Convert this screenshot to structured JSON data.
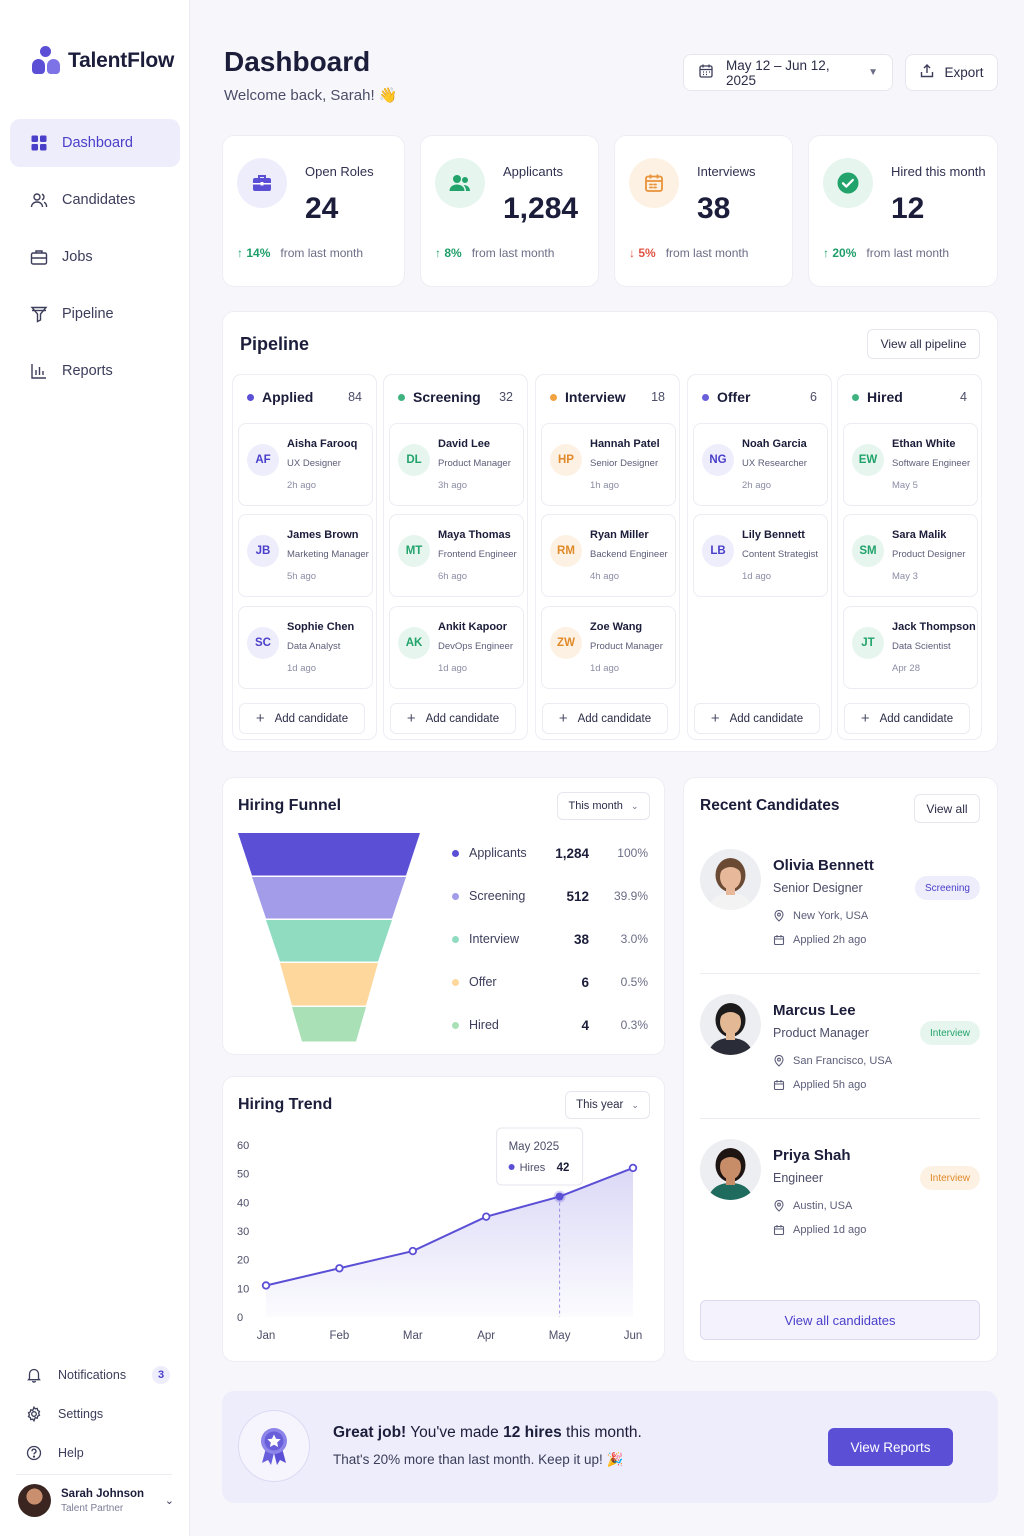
{
  "app": {
    "name": "TalentFlow"
  },
  "sidebar": {
    "nav": [
      {
        "label": "Dashboard",
        "icon": "grid-icon",
        "active": true
      },
      {
        "label": "Candidates",
        "icon": "users-icon"
      },
      {
        "label": "Jobs",
        "icon": "briefcase-icon"
      },
      {
        "label": "Pipeline",
        "icon": "filter-icon"
      },
      {
        "label": "Reports",
        "icon": "bar-chart-icon"
      }
    ],
    "bottom": [
      {
        "label": "Notifications",
        "icon": "bell-icon",
        "badge": "3"
      },
      {
        "label": "Settings",
        "icon": "gear-icon"
      },
      {
        "label": "Help",
        "icon": "help-icon"
      }
    ],
    "user": {
      "name": "Sarah Johnson",
      "role": "Talent Partner"
    }
  },
  "header": {
    "title": "Dashboard",
    "welcome": "Welcome back, Sarah! 👋",
    "date_range": "May 12 – Jun 12, 2025",
    "export_label": "Export"
  },
  "stats": [
    {
      "label": "Open Roles",
      "value": "24",
      "change": "14%",
      "direction": "up",
      "note": "from last month",
      "icon": "briefcase-icon",
      "color": "#5b4fd6",
      "bg": "#eeedfc"
    },
    {
      "label": "Applicants",
      "value": "1,284",
      "change": "8%",
      "direction": "up",
      "note": "from last month",
      "icon": "users-icon",
      "color": "#22a36b",
      "bg": "#e6f6ee"
    },
    {
      "label": "Interviews",
      "value": "38",
      "change": "5%",
      "direction": "down",
      "note": "from last month",
      "icon": "calendar-icon",
      "color": "#e8923a",
      "bg": "#fdf1e3"
    },
    {
      "label": "Hired this month",
      "value": "12",
      "change": "20%",
      "direction": "up",
      "note": "from last month",
      "icon": "check-circle-icon",
      "color": "#22a36b",
      "bg": "#e6f6ee"
    }
  ],
  "pipeline": {
    "title": "Pipeline",
    "view_all": "View all pipeline",
    "add_label": "Add candidate",
    "columns": [
      {
        "name": "Applied",
        "count": "84",
        "color": "#5b4fd6",
        "av_bg": "#eeedfc",
        "av_fg": "#4a3fc9",
        "cards": [
          {
            "initials": "AF",
            "name": "Aisha Farooq",
            "role": "UX Designer",
            "time": "2h ago"
          },
          {
            "initials": "JB",
            "name": "James Brown",
            "role": "Marketing Manager",
            "time": "5h ago"
          },
          {
            "initials": "SC",
            "name": "Sophie Chen",
            "role": "Data Analyst",
            "time": "1d ago"
          }
        ]
      },
      {
        "name": "Screening",
        "count": "32",
        "color": "#3fb37f",
        "av_bg": "#e6f6ee",
        "av_fg": "#22a36b",
        "cards": [
          {
            "initials": "DL",
            "name": "David Lee",
            "role": "Product Manager",
            "time": "3h ago"
          },
          {
            "initials": "MT",
            "name": "Maya Thomas",
            "role": "Frontend Engineer",
            "time": "6h ago"
          },
          {
            "initials": "AK",
            "name": "Ankit Kapoor",
            "role": "DevOps Engineer",
            "time": "1d ago"
          }
        ]
      },
      {
        "name": "Interview",
        "count": "18",
        "color": "#f0a340",
        "av_bg": "#fdf1e3",
        "av_fg": "#e08a2a",
        "cards": [
          {
            "initials": "HP",
            "name": "Hannah Patel",
            "role": "Senior Designer",
            "time": "1h ago"
          },
          {
            "initials": "RM",
            "name": "Ryan Miller",
            "role": "Backend Engineer",
            "time": "4h ago"
          },
          {
            "initials": "ZW",
            "name": "Zoe Wang",
            "role": "Product Manager",
            "time": "1d ago"
          }
        ]
      },
      {
        "name": "Offer",
        "count": "6",
        "color": "#6a5fdb",
        "av_bg": "#eeedfc",
        "av_fg": "#4a3fc9",
        "cards": [
          {
            "initials": "NG",
            "name": "Noah Garcia",
            "role": "UX Researcher",
            "time": "2h ago"
          },
          {
            "initials": "LB",
            "name": "Lily Bennett",
            "role": "Content Strategist",
            "time": "1d ago"
          }
        ]
      },
      {
        "name": "Hired",
        "count": "4",
        "color": "#3fb37f",
        "av_bg": "#e6f6ee",
        "av_fg": "#22a36b",
        "cards": [
          {
            "initials": "EW",
            "name": "Ethan White",
            "role": "Software Engineer",
            "time": "May 5"
          },
          {
            "initials": "SM",
            "name": "Sara Malik",
            "role": "Product Designer",
            "time": "May 3"
          },
          {
            "initials": "JT",
            "name": "Jack Thompson",
            "role": "Data Scientist",
            "time": "Apr 28"
          }
        ]
      }
    ]
  },
  "funnel": {
    "title": "Hiring Funnel",
    "period": "This month",
    "stages": [
      {
        "label": "Applicants",
        "value": "1,284",
        "pct": "100%",
        "color": "#5b4fd6"
      },
      {
        "label": "Screening",
        "value": "512",
        "pct": "39.9%",
        "color": "#a29ce9"
      },
      {
        "label": "Interview",
        "value": "38",
        "pct": "3.0%",
        "color": "#8fdcc0"
      },
      {
        "label": "Offer",
        "value": "6",
        "pct": "0.5%",
        "color": "#fdd79c"
      },
      {
        "label": "Hired",
        "value": "4",
        "pct": "0.3%",
        "color": "#a9e0b5"
      }
    ]
  },
  "trend": {
    "title": "Hiring Trend",
    "period": "This year",
    "tooltip": {
      "label": "May 2025",
      "series": "Hires",
      "value": "42"
    }
  },
  "chart_data": {
    "type": "area",
    "categories": [
      "Jan",
      "Feb",
      "Mar",
      "Apr",
      "May",
      "Jun"
    ],
    "series": [
      {
        "name": "Hires",
        "values": [
          11,
          17,
          23,
          35,
          42,
          52
        ]
      }
    ],
    "ylim": [
      0,
      60
    ],
    "yticks": [
      "0",
      "10",
      "20",
      "30",
      "40",
      "50",
      "60"
    ],
    "highlight_index": 4,
    "color": "#5b4fd6"
  },
  "recent": {
    "title": "Recent Candidates",
    "view_all": "View all",
    "view_all_candidates": "View all candidates",
    "items": [
      {
        "name": "Olivia Bennett",
        "role": "Senior Designer",
        "location": "New York, USA",
        "applied": "Applied 2h ago",
        "status": "Screening",
        "badge_bg": "#eeedfc",
        "badge_fg": "#4a3fc9",
        "skin": "#e7b99a",
        "hair": "#6b4a34",
        "shirt": "#f3f3f3"
      },
      {
        "name": "Marcus Lee",
        "role": "Product Manager",
        "location": "San Francisco, USA",
        "applied": "Applied 5h ago",
        "status": "Interview",
        "badge_bg": "#e6f6ee",
        "badge_fg": "#22a36b",
        "skin": "#e3b995",
        "hair": "#1c1a1a",
        "shirt": "#2a2c38"
      },
      {
        "name": "Priya Shah",
        "role": "Engineer",
        "location": "Austin, USA",
        "applied": "Applied 1d ago",
        "status": "Interview",
        "badge_bg": "#fdf1e3",
        "badge_fg": "#e08a2a",
        "skin": "#c68d68",
        "hair": "#1e1412",
        "shirt": "#1f6b5e"
      }
    ]
  },
  "banner": {
    "lead": "Great job!",
    "text_a": " You've made ",
    "hires": "12 hires",
    "text_b": " this month.",
    "line2": "That's 20% more than last month. Keep it up! 🎉",
    "button": "View Reports"
  }
}
